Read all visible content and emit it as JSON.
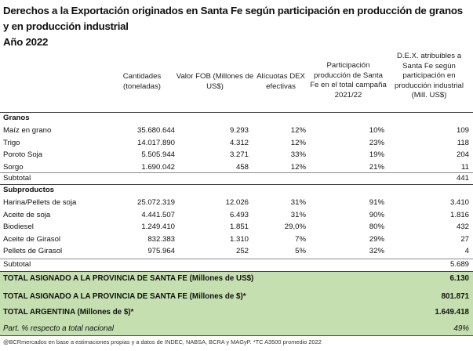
{
  "title": {
    "line1": "Derechos a la Exportación originados en Santa Fe según participación en producción de granos y en producción industrial",
    "year": "Año 2022"
  },
  "headers": {
    "cantidades": "Cantidades (toneladas)",
    "valor_fob": "Valor FOB (Millones de US$)",
    "alicuotas": "Alícuotas DEX efectivas",
    "participacion": "Participación producción de Santa Fe en el total campaña 2021/22",
    "dex": "D.E.X. atribuibles a Santa Fe según participación en producción industrial (Mill. US$)"
  },
  "granos": {
    "label": "Granos",
    "rows": [
      {
        "name": "Maíz en grano",
        "cant": "35.680.644",
        "fob": "9.293",
        "ali": "12%",
        "part": "10%",
        "dex": "109"
      },
      {
        "name": "Trigo",
        "cant": "14.017.890",
        "fob": "4.312",
        "ali": "12%",
        "part": "23%",
        "dex": "118"
      },
      {
        "name": "Poroto Soja",
        "cant": "5.505.944",
        "fob": "3.271",
        "ali": "33%",
        "part": "19%",
        "dex": "204"
      },
      {
        "name": "Sorgo",
        "cant": "1.690.042",
        "fob": "458",
        "ali": "12%",
        "part": "21%",
        "dex": "11"
      }
    ],
    "subtotal_label": "Subtotal",
    "subtotal": "441"
  },
  "subproductos": {
    "label": "Subproductos",
    "rows": [
      {
        "name": "Harina/Pellets de soja",
        "cant": "25.072.319",
        "fob": "12.026",
        "ali": "31%",
        "part": "91%",
        "dex": "3.410"
      },
      {
        "name": "Aceite de soja",
        "cant": "4.441.507",
        "fob": "6.493",
        "ali": "31%",
        "part": "90%",
        "dex": "1.816"
      },
      {
        "name": "Biodiesel",
        "cant": "1.249.410",
        "fob": "1.851",
        "ali": "29,0%",
        "part": "80%",
        "dex": "432"
      },
      {
        "name": "Aceite de Girasol",
        "cant": "832.383",
        "fob": "1.310",
        "ali": "7%",
        "part": "29%",
        "dex": "27"
      },
      {
        "name": "Pellets de Girasol",
        "cant": "975.964",
        "fob": "252",
        "ali": "5%",
        "part": "32%",
        "dex": "4"
      }
    ],
    "subtotal_label": "Subtotal",
    "subtotal": "5.689"
  },
  "totals": [
    {
      "label": "TOTAL ASIGNADO A LA PROVINCIA DE SANTA FE (Millones de US$)",
      "value": "6.130"
    },
    {
      "label": "TOTAL ASIGNADO A LA PROVINCIA DE SANTA FE (Millones de $)*",
      "value": "801.871"
    },
    {
      "label": "TOTAL ARGENTINA (Millones de $)*",
      "value": "1.649.418"
    },
    {
      "label": "Part. % respecto a total nacional",
      "value": "49%"
    }
  ],
  "footnote": "@BCRmercados en base a estimaciones propias y a datos de INDEC, NABSA, BCRA y MAGyP. *TC A3500 promedio 2022",
  "colors": {
    "green_band": "#c6dfb0"
  }
}
